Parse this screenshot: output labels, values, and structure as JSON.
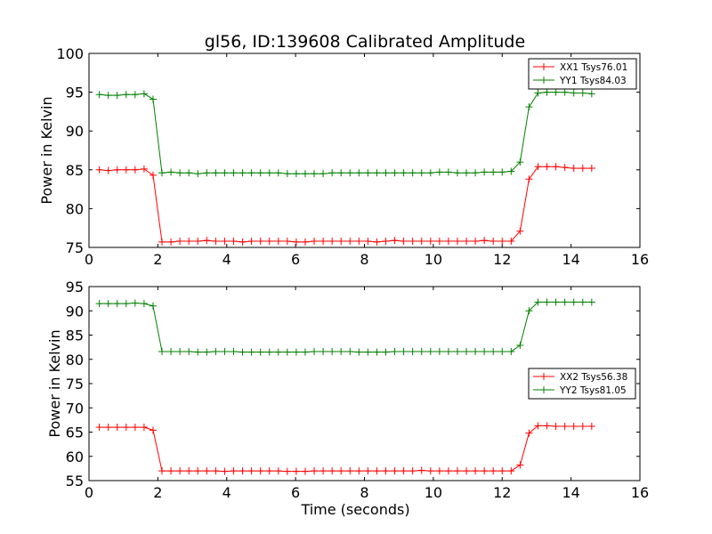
{
  "title": "gl56, ID:139608 Calibrated Amplitude",
  "chart_data": [
    {
      "type": "line",
      "title": "gl56, ID:139608 Calibrated Amplitude",
      "xlabel": "",
      "ylabel": "Power in Kelvin",
      "xlim": [
        0,
        16
      ],
      "ylim": [
        75,
        100
      ],
      "xticks": [
        0,
        2,
        4,
        6,
        8,
        10,
        12,
        14,
        16
      ],
      "yticks": [
        75,
        80,
        85,
        90,
        95,
        100
      ],
      "legend": "top-right",
      "x": [
        0.3,
        0.56,
        0.82,
        1.08,
        1.34,
        1.6,
        1.86,
        2.12,
        2.38,
        2.64,
        2.9,
        3.16,
        3.42,
        3.68,
        3.94,
        4.2,
        4.46,
        4.72,
        4.98,
        5.24,
        5.5,
        5.76,
        6.02,
        6.28,
        6.54,
        6.8,
        7.06,
        7.32,
        7.58,
        7.84,
        8.1,
        8.36,
        8.62,
        8.88,
        9.14,
        9.4,
        9.66,
        9.92,
        10.18,
        10.44,
        10.7,
        10.96,
        11.22,
        11.48,
        11.74,
        12.0,
        12.26,
        12.52,
        12.78,
        13.04,
        13.3,
        13.56,
        13.82,
        14.08,
        14.34,
        14.6
      ],
      "series": [
        {
          "name": "XX1 Tsys76.01",
          "color": "#ff0000",
          "values": [
            85.0,
            84.9,
            85.0,
            85.0,
            85.0,
            85.1,
            84.3,
            75.7,
            75.7,
            75.8,
            75.8,
            75.8,
            75.9,
            75.8,
            75.8,
            75.8,
            75.7,
            75.8,
            75.8,
            75.8,
            75.8,
            75.8,
            75.7,
            75.7,
            75.8,
            75.8,
            75.8,
            75.8,
            75.8,
            75.8,
            75.8,
            75.7,
            75.8,
            75.9,
            75.8,
            75.8,
            75.8,
            75.8,
            75.8,
            75.8,
            75.8,
            75.8,
            75.8,
            75.9,
            75.8,
            75.8,
            75.8,
            77.1,
            83.8,
            85.4,
            85.4,
            85.4,
            85.3,
            85.2,
            85.2,
            85.2
          ]
        },
        {
          "name": "YY1 Tsys84.03",
          "color": "#008000",
          "values": [
            94.7,
            94.6,
            94.6,
            94.7,
            94.7,
            94.8,
            94.1,
            84.6,
            84.7,
            84.6,
            84.6,
            84.5,
            84.6,
            84.6,
            84.6,
            84.6,
            84.6,
            84.6,
            84.6,
            84.6,
            84.6,
            84.5,
            84.5,
            84.5,
            84.5,
            84.5,
            84.6,
            84.6,
            84.6,
            84.6,
            84.6,
            84.6,
            84.6,
            84.6,
            84.6,
            84.6,
            84.6,
            84.6,
            84.7,
            84.7,
            84.6,
            84.6,
            84.6,
            84.7,
            84.7,
            84.7,
            84.8,
            86.0,
            93.1,
            94.9,
            95.0,
            95.0,
            95.0,
            94.9,
            94.9,
            94.8
          ]
        }
      ]
    },
    {
      "type": "line",
      "title": "",
      "xlabel": "Time (seconds)",
      "ylabel": "Power in Kelvin",
      "xlim": [
        0,
        16
      ],
      "ylim": [
        55,
        95
      ],
      "xticks": [
        0,
        2,
        4,
        6,
        8,
        10,
        12,
        14,
        16
      ],
      "yticks": [
        55,
        60,
        65,
        70,
        75,
        80,
        85,
        90,
        95
      ],
      "legend": "center-right",
      "x": [
        0.3,
        0.56,
        0.82,
        1.08,
        1.34,
        1.6,
        1.86,
        2.12,
        2.38,
        2.64,
        2.9,
        3.16,
        3.42,
        3.68,
        3.94,
        4.2,
        4.46,
        4.72,
        4.98,
        5.24,
        5.5,
        5.76,
        6.02,
        6.28,
        6.54,
        6.8,
        7.06,
        7.32,
        7.58,
        7.84,
        8.1,
        8.36,
        8.62,
        8.88,
        9.14,
        9.4,
        9.66,
        9.92,
        10.18,
        10.44,
        10.7,
        10.96,
        11.22,
        11.48,
        11.74,
        12.0,
        12.26,
        12.52,
        12.78,
        13.04,
        13.3,
        13.56,
        13.82,
        14.08,
        14.34,
        14.6
      ],
      "series": [
        {
          "name": "XX2 Tsys56.38",
          "color": "#ff0000",
          "values": [
            66.0,
            66.0,
            66.0,
            66.0,
            66.0,
            66.0,
            65.4,
            57.0,
            57.0,
            57.0,
            57.0,
            57.0,
            57.0,
            57.0,
            56.9,
            57.0,
            57.0,
            57.0,
            57.0,
            57.0,
            57.0,
            56.9,
            56.9,
            56.9,
            57.0,
            57.0,
            57.0,
            57.0,
            57.0,
            57.0,
            57.0,
            57.0,
            57.0,
            57.0,
            57.0,
            57.0,
            57.1,
            57.0,
            57.0,
            57.0,
            57.0,
            57.0,
            57.0,
            57.0,
            57.0,
            57.0,
            57.0,
            58.2,
            64.8,
            66.3,
            66.3,
            66.2,
            66.2,
            66.2,
            66.2,
            66.2
          ]
        },
        {
          "name": "YY2 Tsys81.05",
          "color": "#008000",
          "values": [
            91.5,
            91.5,
            91.5,
            91.5,
            91.6,
            91.5,
            91.0,
            81.6,
            81.6,
            81.6,
            81.6,
            81.5,
            81.5,
            81.6,
            81.6,
            81.6,
            81.5,
            81.5,
            81.5,
            81.5,
            81.5,
            81.5,
            81.5,
            81.5,
            81.6,
            81.6,
            81.6,
            81.6,
            81.6,
            81.5,
            81.5,
            81.5,
            81.5,
            81.6,
            81.6,
            81.6,
            81.6,
            81.6,
            81.6,
            81.6,
            81.6,
            81.6,
            81.6,
            81.6,
            81.6,
            81.6,
            81.6,
            82.9,
            90.0,
            91.8,
            91.8,
            91.8,
            91.8,
            91.8,
            91.8,
            91.8
          ]
        }
      ]
    }
  ]
}
